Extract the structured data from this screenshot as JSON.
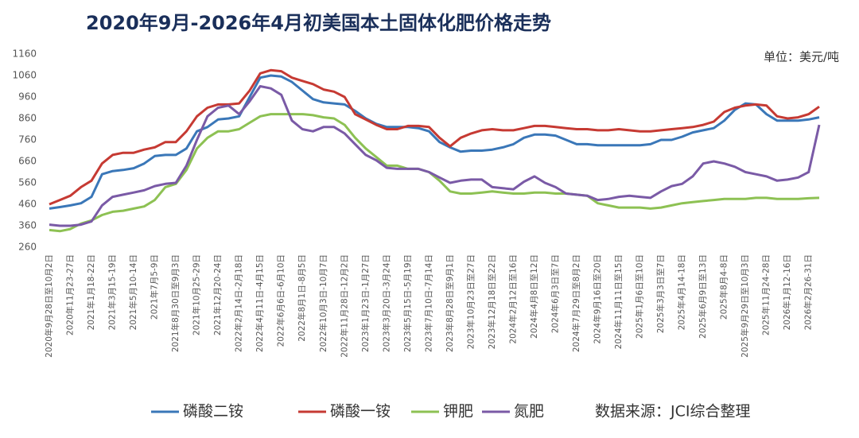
{
  "chart_data": {
    "type": "line",
    "title": "2020年9月-2026年4月初美国本土固体化肥价格走势",
    "unit": "单位：美元/吨",
    "source": "数据来源：JCI综合整理",
    "categories": [
      "2020年9月28日至10月2日",
      null,
      "2020年11月23-27日",
      null,
      "2021年1月18-22日",
      null,
      "2021年3月15-19日",
      null,
      "2021年5月10-14日",
      null,
      "2021年7月5-9日",
      null,
      "2021年8月30日至9月3日",
      null,
      "2021年10月25-29日",
      null,
      "2021年12月20-24日",
      null,
      "2022年2月14日-2月18日",
      null,
      "2022年4月11日-4月15日",
      null,
      "2022年6月6日-6月10日",
      null,
      "2022年8月1日-8月5日",
      null,
      "2022年10月3日-10月7日",
      null,
      "2022年11月28日-12月2日",
      null,
      "2023年1月23日-1月27日",
      null,
      "2023年3月20日-3月24日",
      null,
      "2023年5月15日-5月19日",
      null,
      "2023年7月10日-7月14日",
      null,
      "2023年8月28日至9月1日",
      null,
      "2023年10月23日至27日",
      null,
      "2023年12月18日至22日",
      null,
      "2024年2月12日至16日",
      null,
      "2024年4月8日至12日",
      null,
      "2024年6月3日至7日",
      null,
      "2024年7月29日至8月2日",
      null,
      "2024年9月16日至20日",
      null,
      "2024年11月11日至15日",
      null,
      "2025年1月6日至10日",
      null,
      "2025年3月3日至7日",
      null,
      "2025年4月14-18日",
      null,
      "2025年6月9日至13日",
      null,
      "2025年8月4-8日",
      null,
      "2025年9月29日至10月3日",
      null,
      "2025年11月24-28日",
      null,
      "2026年1月12-16日",
      null,
      "2026年2月26-31日",
      null
    ],
    "series": [
      {
        "name": "磷酸二铵",
        "color": "#3a77b8",
        "values": [
          440,
          447,
          455,
          465,
          495,
          600,
          615,
          620,
          628,
          650,
          685,
          690,
          690,
          720,
          800,
          820,
          855,
          860,
          870,
          960,
          1050,
          1060,
          1055,
          1030,
          990,
          950,
          935,
          930,
          925,
          895,
          860,
          835,
          820,
          820,
          820,
          815,
          800,
          750,
          725,
          705,
          710,
          710,
          715,
          725,
          740,
          770,
          785,
          785,
          780,
          760,
          740,
          740,
          735,
          735,
          735,
          735,
          735,
          740,
          760,
          760,
          775,
          795,
          805,
          815,
          850,
          900,
          930,
          925,
          880,
          850,
          850,
          850,
          855,
          865
        ]
      },
      {
        "name": "磷酸一铵",
        "color": "#c63a33",
        "values": [
          460,
          480,
          500,
          540,
          570,
          650,
          690,
          700,
          700,
          715,
          725,
          750,
          750,
          800,
          870,
          910,
          925,
          925,
          930,
          990,
          1070,
          1085,
          1080,
          1050,
          1035,
          1020,
          995,
          985,
          960,
          880,
          855,
          830,
          810,
          810,
          825,
          825,
          820,
          770,
          730,
          770,
          790,
          805,
          810,
          805,
          805,
          815,
          825,
          825,
          820,
          815,
          810,
          810,
          805,
          805,
          810,
          805,
          800,
          800,
          805,
          810,
          815,
          820,
          830,
          845,
          890,
          910,
          920,
          925,
          920,
          870,
          860,
          865,
          880,
          915
        ]
      },
      {
        "name": "钾肥",
        "color": "#8dc153",
        "values": [
          340,
          335,
          345,
          370,
          385,
          410,
          425,
          430,
          440,
          450,
          480,
          540,
          555,
          620,
          720,
          770,
          800,
          800,
          810,
          840,
          870,
          880,
          880,
          880,
          880,
          875,
          865,
          860,
          830,
          770,
          720,
          680,
          640,
          640,
          625,
          625,
          610,
          570,
          520,
          510,
          510,
          515,
          520,
          515,
          510,
          510,
          515,
          515,
          510,
          510,
          505,
          500,
          465,
          455,
          445,
          445,
          445,
          440,
          445,
          455,
          465,
          470,
          475,
          480,
          485,
          485,
          485,
          490,
          490,
          485,
          485,
          485,
          488,
          490
        ]
      },
      {
        "name": "氮肥",
        "color": "#7a5aa6",
        "values": [
          365,
          360,
          360,
          365,
          380,
          455,
          495,
          505,
          515,
          525,
          545,
          555,
          560,
          640,
          760,
          870,
          910,
          920,
          880,
          940,
          1010,
          1000,
          970,
          850,
          810,
          800,
          820,
          820,
          790,
          740,
          690,
          665,
          630,
          625,
          625,
          625,
          610,
          585,
          560,
          570,
          575,
          575,
          540,
          535,
          530,
          565,
          590,
          560,
          540,
          510,
          505,
          500,
          480,
          485,
          495,
          500,
          495,
          490,
          520,
          545,
          555,
          590,
          650,
          660,
          650,
          635,
          610,
          600,
          590,
          570,
          575,
          585,
          610,
          830
        ]
      }
    ],
    "ylim": [
      260,
      1160
    ],
    "yticks": [
      260,
      360,
      460,
      560,
      660,
      760,
      860,
      960,
      1060,
      1160
    ],
    "grid": false
  }
}
